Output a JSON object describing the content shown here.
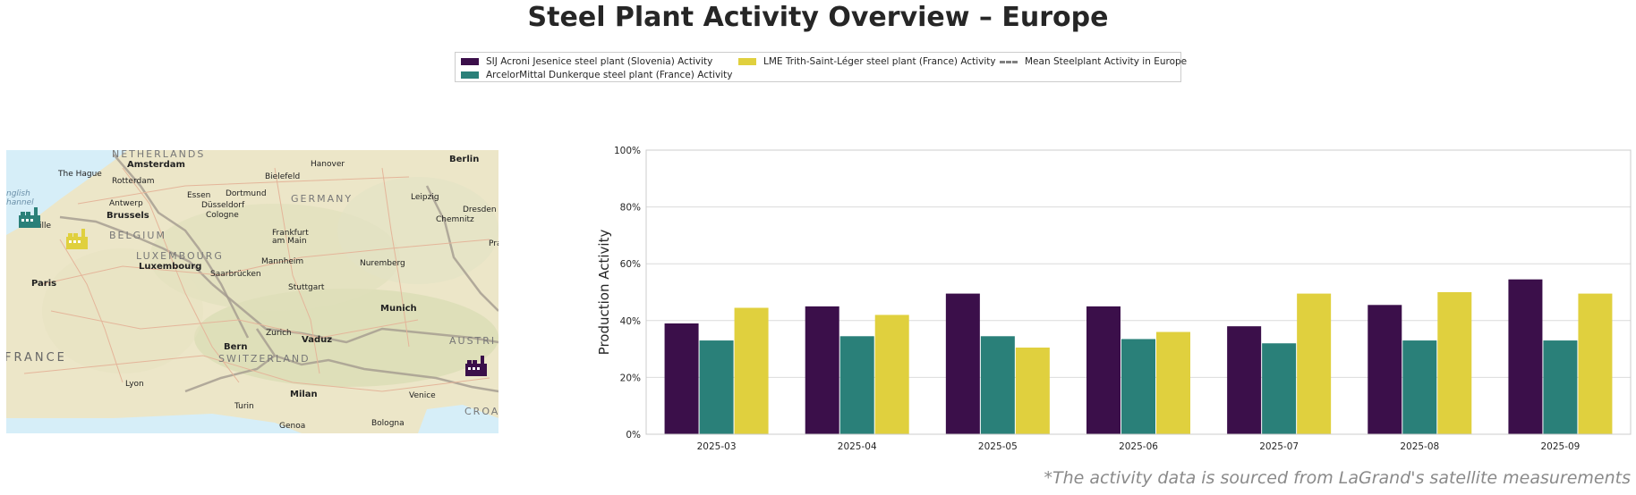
{
  "title": "Steel Plant Activity Overview – Europe",
  "legend": {
    "items": [
      {
        "label": "SIJ Acroni Jesenice steel plant (Slovenia) Activity",
        "color": "#3b0f4a",
        "kind": "box"
      },
      {
        "label": "ArcelorMittal Dunkerque steel plant (France) Activity",
        "color": "#2a8079",
        "kind": "box"
      },
      {
        "label": "LME Trith-Saint-Léger steel plant (France) Activity",
        "color": "#e0d03e",
        "kind": "box"
      },
      {
        "label": "Mean Steelplant Activity in Europe",
        "color": "#808080",
        "kind": "dash"
      }
    ]
  },
  "map": {
    "labels": {
      "netherlands": "NETHERLANDS",
      "amsterdam": "Amsterdam",
      "the_hague": "The Hague",
      "rotterdam": "Rotterdam",
      "hanover": "Hanover",
      "berlin": "Berlin",
      "bielefeld": "Bielefeld",
      "english_channel": "nglish\nhannel",
      "antwerp": "Antwerp",
      "essen": "Essen",
      "dortmund": "Dortmund",
      "germany": "GERMANY",
      "leipzig": "Leipzig",
      "dresden": "Dresden",
      "brussels": "Brussels",
      "dusseldorf": "Düsseldorf",
      "cologne": "Cologne",
      "chemnitz": "Chemnitz",
      "lille": "Lille",
      "belgium": "BELGIUM",
      "frankfurt": "Frankfurt\nam Main",
      "luxembourg_country": "LUXEMBOURG",
      "luxembourg": "Luxembourg",
      "mannheim": "Mannheim",
      "nuremberg": "Nuremberg",
      "saarbrucken": "Saarbrücken",
      "paris": "Paris",
      "stuttgart": "Stuttgart",
      "prague": "Pra",
      "munich": "Munich",
      "zurich": "Zurich",
      "vaduz": "Vaduz",
      "austria": "AUSTRI",
      "bern": "Bern",
      "switzerland": "SWITZERLAND",
      "france": "FRANCE",
      "lyon": "Lyon",
      "milan": "Milan",
      "venice": "Venice",
      "turin": "Turin",
      "genoa": "Genoa",
      "bologna": "Bologna",
      "croatia": "CROA"
    },
    "markers": [
      {
        "name": "SIJ Acroni Jesenice",
        "color": "#3b0f4a"
      },
      {
        "name": "ArcelorMittal Dunkerque",
        "color": "#2a8079"
      },
      {
        "name": "LME Trith-Saint-Léger",
        "color": "#e0d03e"
      }
    ]
  },
  "chart_data": {
    "type": "bar",
    "title": "",
    "xlabel": "",
    "ylabel": "Production Activity",
    "ylim": [
      0,
      100
    ],
    "yticks": [
      "0%",
      "20%",
      "40%",
      "60%",
      "80%",
      "100%"
    ],
    "grid": true,
    "categories": [
      "2025-03",
      "2025-04",
      "2025-05",
      "2025-06",
      "2025-07",
      "2025-08",
      "2025-09"
    ],
    "series": [
      {
        "name": "SIJ Acroni Jesenice steel plant (Slovenia) Activity",
        "color": "#3b0f4a",
        "values": [
          39,
          45,
          49.5,
          45,
          38,
          45.5,
          54.5
        ]
      },
      {
        "name": "ArcelorMittal Dunkerque steel plant (France) Activity",
        "color": "#2a8079",
        "values": [
          33,
          34.5,
          34.5,
          33.5,
          32,
          33,
          33
        ]
      },
      {
        "name": "LME Trith-Saint-Léger steel plant (France) Activity",
        "color": "#e0d03e",
        "values": [
          44.5,
          42,
          30.5,
          36,
          49.5,
          50,
          49.5
        ]
      }
    ]
  },
  "footnote": "*The activity data is sourced from LaGrand's satellite measurements"
}
